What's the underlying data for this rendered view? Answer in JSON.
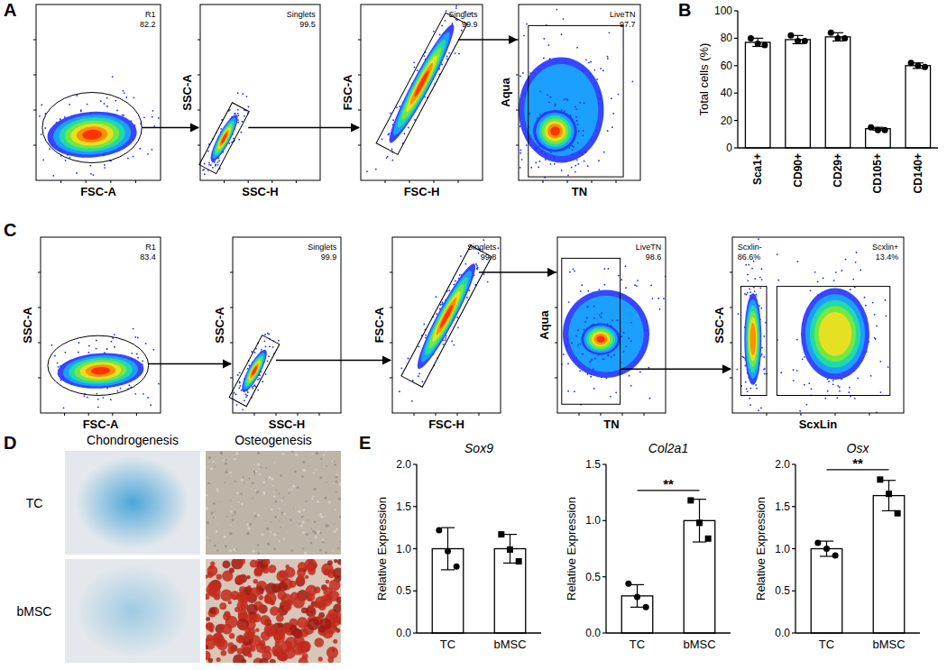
{
  "panel_labels": [
    "A",
    "B",
    "C",
    "D",
    "E"
  ],
  "flow_panels": [
    {
      "plots": [
        {
          "x_label": "FSC-A",
          "gates": [
            {
              "name": "R1",
              "value": "82.2"
            }
          ]
        },
        {
          "x_label": "SSC-H",
          "y_label": "SSC-A",
          "gates": [
            {
              "name": "Singlets",
              "value": "99.5"
            }
          ]
        },
        {
          "x_label": "FSC-H",
          "y_label": "FSC-A",
          "gates": [
            {
              "name": "Singlets",
              "value": "99.9"
            }
          ]
        },
        {
          "x_label": "TN",
          "y_label": "Aqua",
          "gates": [
            {
              "name": "LiveTN",
              "value": "97.7"
            }
          ]
        }
      ]
    },
    {
      "plots": [
        {
          "x_label": "FSC-A",
          "y_label": "SSC-A",
          "gates": [
            {
              "name": "R1",
              "value": "83.4"
            }
          ]
        },
        {
          "x_label": "SSC-H",
          "y_label": "SSC-A",
          "gates": [
            {
              "name": "Singlets",
              "value": "99.9"
            }
          ]
        },
        {
          "x_label": "FSC-H",
          "y_label": "FSC-A",
          "gates": [
            {
              "name": "Singlets",
              "value": "99.8"
            }
          ]
        },
        {
          "x_label": "TN",
          "y_label": "Aqua",
          "gates": [
            {
              "name": "LiveTN",
              "value": "98.6"
            }
          ]
        },
        {
          "x_label": "ScxLin",
          "y_label": "SSC-A",
          "gates": [
            {
              "name": "Scxlin-",
              "value": "86.6%"
            },
            {
              "name": "Scxlin+",
              "value": "13.4%"
            }
          ]
        }
      ]
    }
  ],
  "stain_images": {
    "columns": [
      "Chondrogenesis",
      "Osteogenesis"
    ],
    "rows": [
      "TC",
      "bMSC"
    ]
  },
  "chart_data": [
    {
      "type": "bar",
      "categories": [
        "Sca1+",
        "CD90+",
        "CD29+",
        "CD105+",
        "CD140+"
      ],
      "values": [
        77,
        79,
        81,
        14,
        60
      ],
      "errors": [
        3,
        3,
        3,
        1,
        2
      ],
      "points": [
        [
          80,
          76,
          75
        ],
        [
          82,
          78,
          78
        ],
        [
          84,
          80,
          80
        ],
        [
          15,
          13,
          13
        ],
        [
          62,
          60,
          59
        ]
      ],
      "ylim": [
        0,
        100
      ],
      "yticks": [
        0,
        20,
        40,
        60,
        80,
        100
      ],
      "ylabel": "Total cells (%)",
      "color": "#ffffff",
      "marker": "circle"
    },
    {
      "type": "bar",
      "title": "Sox9",
      "categories": [
        "TC",
        "bMSC"
      ],
      "values": [
        1.0,
        1.0
      ],
      "errors": [
        0.25,
        0.17
      ],
      "points": [
        [
          1.22,
          0.97,
          0.79
        ],
        [
          1.17,
          0.99,
          0.85
        ]
      ],
      "ylim": [
        0,
        2
      ],
      "yticks": [
        {
          "value": 0,
          "label": "0.0"
        },
        0.5,
        {
          "value": 1,
          "label": "1.0"
        },
        1.5,
        {
          "value": 2,
          "label": "2.0"
        }
      ],
      "ylabel": "Relative Expression",
      "color": "#ffffff"
    },
    {
      "type": "bar",
      "title": "Col2a1",
      "categories": [
        "TC",
        "bMSC"
      ],
      "values": [
        0.33,
        1.0
      ],
      "errors": [
        0.1,
        0.19
      ],
      "points": [
        [
          0.44,
          0.32,
          0.23
        ],
        [
          1.18,
          0.98,
          0.84
        ]
      ],
      "ylim": [
        0,
        1.5
      ],
      "yticks": [
        {
          "value": 0,
          "label": "0.0"
        },
        0.5,
        {
          "value": 1,
          "label": "1.0"
        },
        1.5
      ],
      "ylabel": "Relative Expression",
      "color": "#ffffff",
      "annotation": "**"
    },
    {
      "type": "bar",
      "title": "Osx",
      "categories": [
        "TC",
        "bMSC"
      ],
      "values": [
        1.0,
        1.63
      ],
      "errors": [
        0.09,
        0.18
      ],
      "points": [
        [
          1.07,
          1.0,
          0.92
        ],
        [
          1.82,
          1.65,
          1.42
        ]
      ],
      "ylim": [
        0,
        2
      ],
      "yticks": [
        {
          "value": 0,
          "label": "0.0"
        },
        0.5,
        {
          "value": 1,
          "label": "1.0"
        },
        1.5,
        {
          "value": 2,
          "label": "2.0"
        }
      ],
      "ylabel": "Relative Expression",
      "color": "#ffffff",
      "annotation": "**"
    }
  ]
}
